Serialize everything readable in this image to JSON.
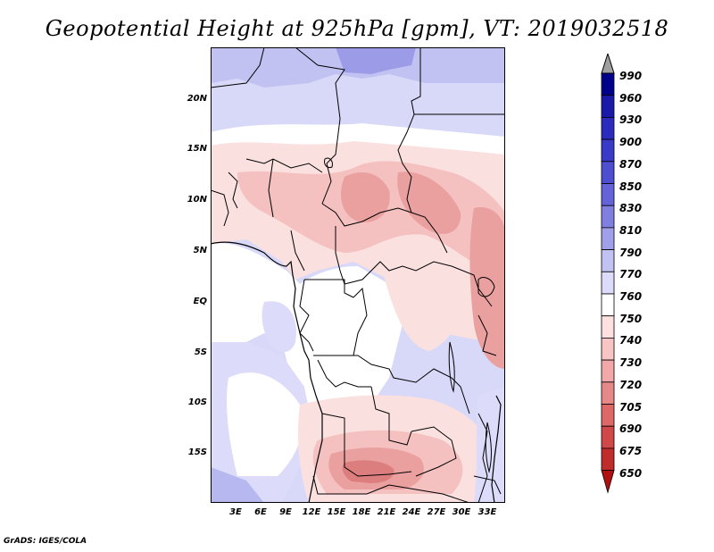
{
  "title": "Geopotential Height at 925hPa [gpm], VT: 2019032518",
  "footer": "GrADS: IGES/COLA",
  "lat_labels": [
    "20N",
    "15N",
    "10N",
    "5N",
    "EQ",
    "5S",
    "10S",
    "15S"
  ],
  "lon_labels": [
    "3E",
    "6E",
    "9E",
    "12E",
    "15E",
    "18E",
    "21E",
    "24E",
    "27E",
    "30E",
    "33E"
  ],
  "colorbar": {
    "labels": [
      "990",
      "960",
      "930",
      "900",
      "870",
      "850",
      "830",
      "810",
      "790",
      "770",
      "760",
      "750",
      "740",
      "730",
      "720",
      "705",
      "690",
      "675",
      "650"
    ],
    "colors": [
      "#00008b",
      "#1a1aa8",
      "#2b2bbe",
      "#3a3ac8",
      "#4e4ed0",
      "#6464d8",
      "#8080e0",
      "#a0a0ea",
      "#c2c2f2",
      "#dcdcfa",
      "#ffffff",
      "#fde0e0",
      "#f8c4c4",
      "#f0a8a8",
      "#e68888",
      "#dc6868",
      "#d04848",
      "#c02c2c",
      "#b01010"
    ],
    "top_arrow_color": "#a0a0a0"
  },
  "map": {
    "lon_range": [
      0,
      35
    ],
    "lat_range": [
      -20,
      24
    ],
    "colors": {
      "land_border": "#000000",
      "purple_dark": "#9b9be8",
      "purple_light": "#d2d2f6",
      "white": "#ffffff",
      "pink_light": "#fbe0e0",
      "pink": "#f4c0c0",
      "pink_mid": "#eba0a0",
      "red_mid": "#dc7e7e"
    }
  }
}
